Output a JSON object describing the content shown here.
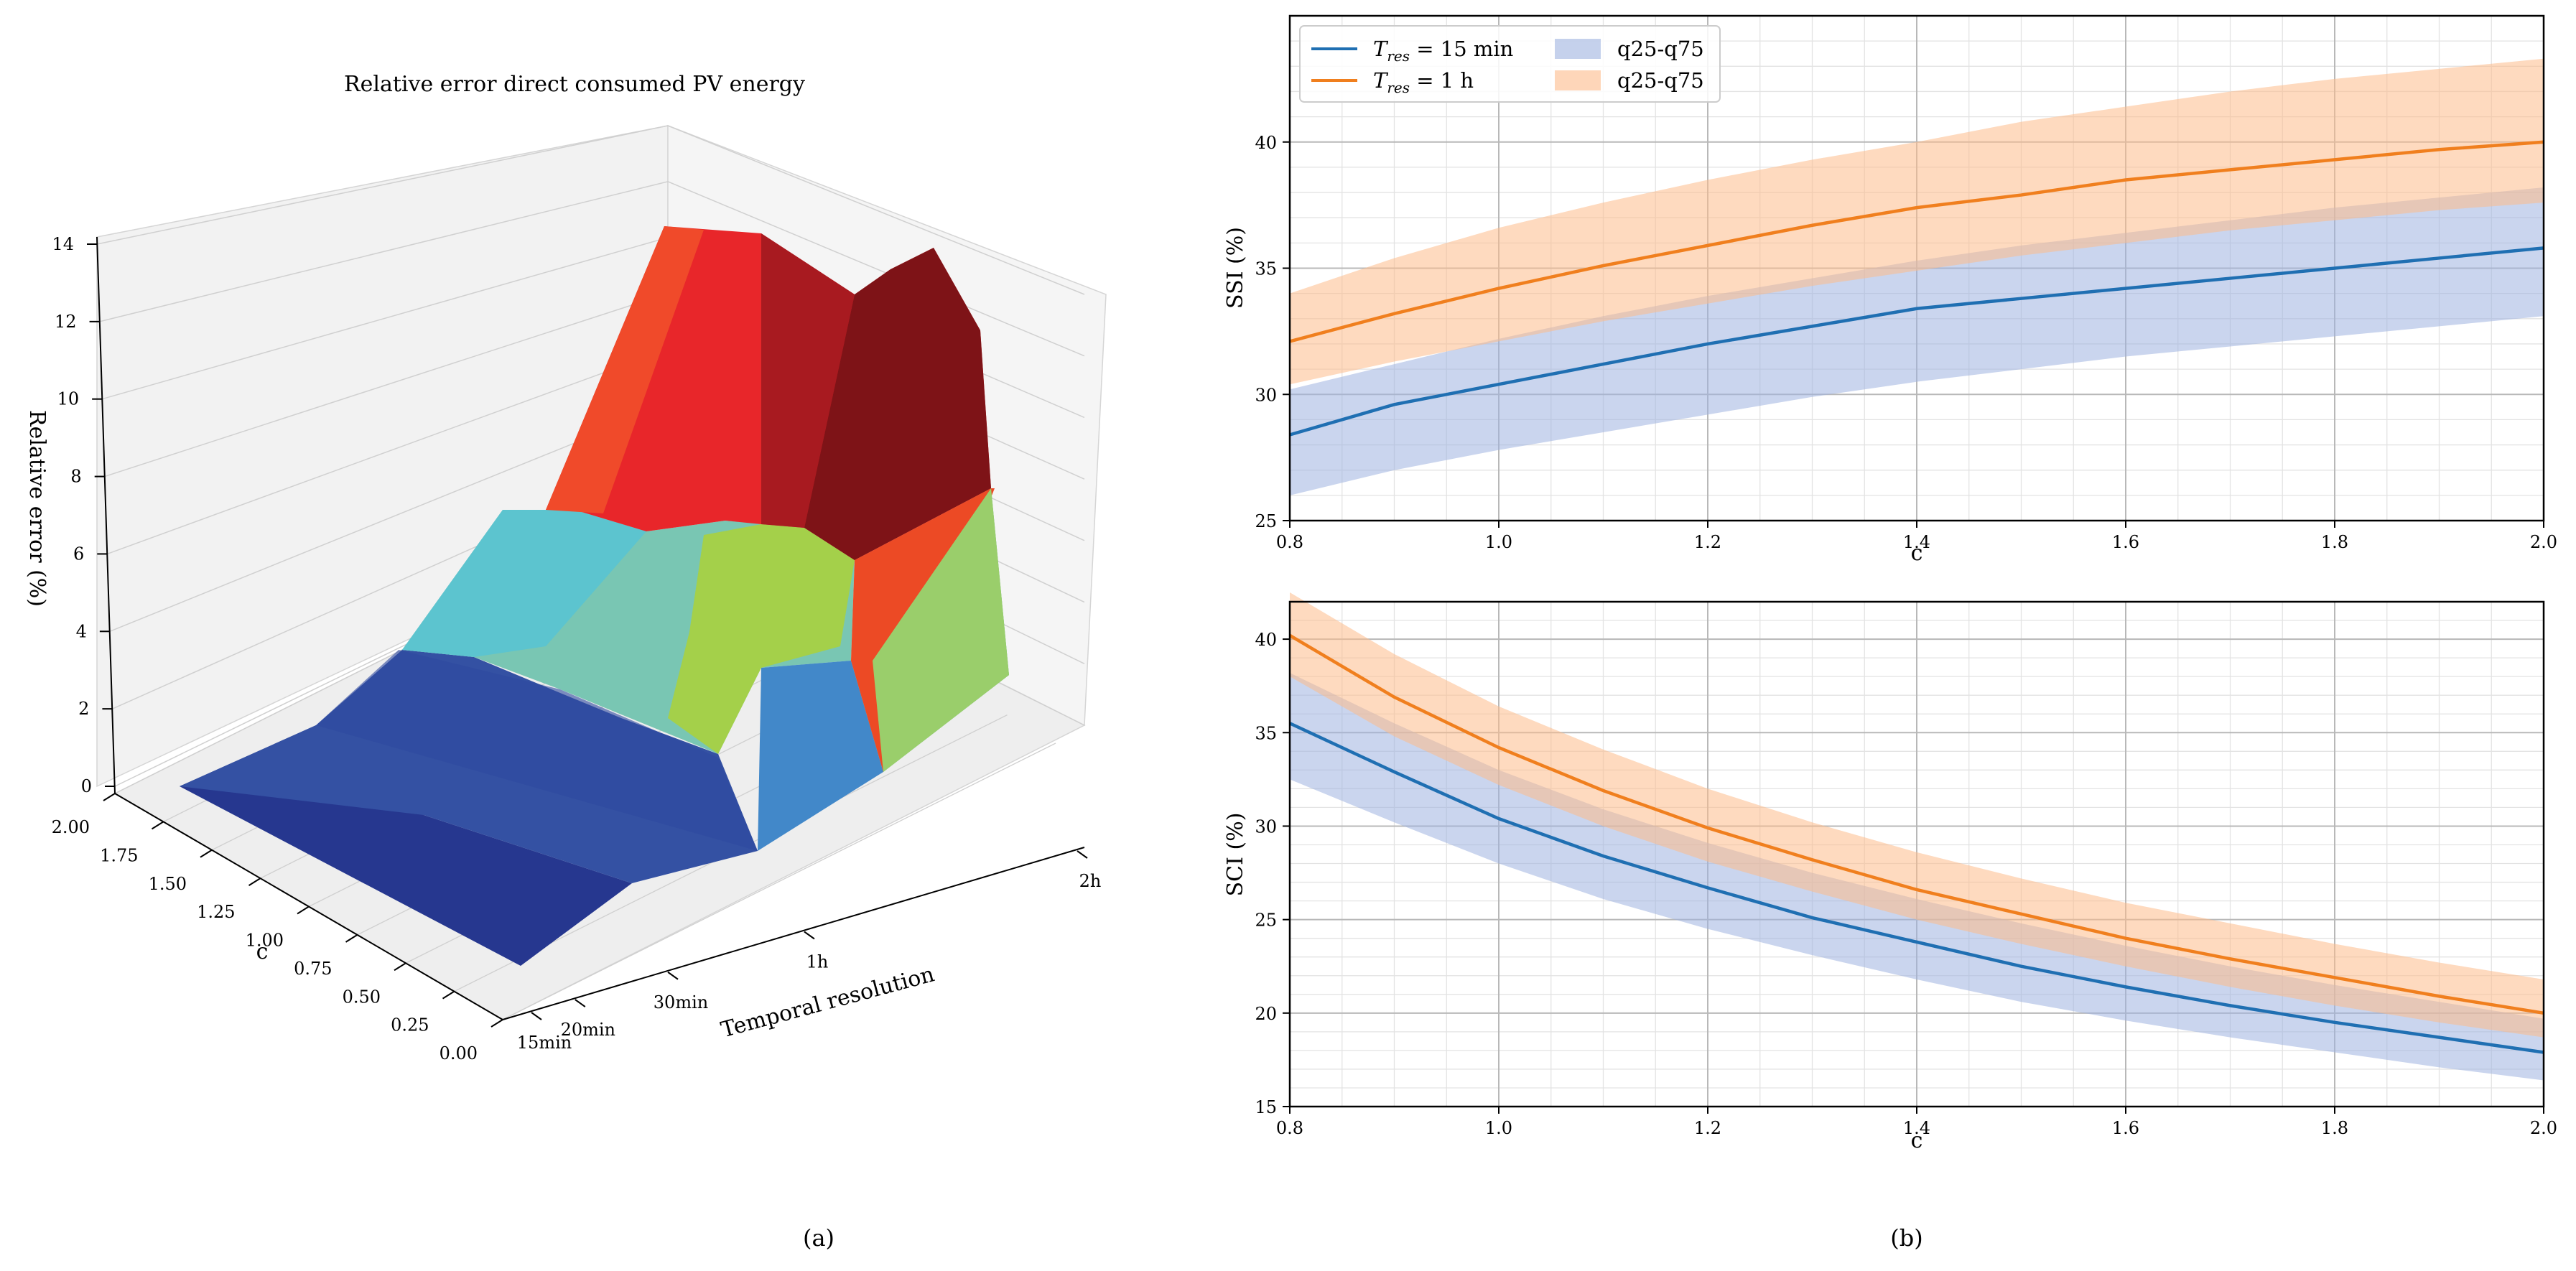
{
  "captions": {
    "a": "(a)",
    "b": "(b)"
  },
  "colors": {
    "blue": "#1f6fb2",
    "orange": "#f07f1e",
    "blue_band": "#9fb2e0",
    "orange_band": "#fdbb8a",
    "grid": "#bdbdbd"
  },
  "chart_data": [
    {
      "type": "surface",
      "title": "Relative error direct consumed PV energy",
      "xlabel": "Temporal resolution",
      "ylabel": "c",
      "zlabel": "Relative error (%)",
      "x_ticks": [
        "15min",
        "20min",
        "30min",
        "1h",
        "2h"
      ],
      "y_ticks": [
        "0.00",
        "0.25",
        "0.50",
        "0.75",
        "1.00",
        "1.25",
        "1.50",
        "1.75",
        "2.00"
      ],
      "z_ticks": [
        "0",
        "2",
        "4",
        "6",
        "8",
        "10",
        "12",
        "14"
      ],
      "zlim": [
        0,
        14
      ],
      "surface_z_at_c_max": [
        0.3,
        2.5,
        5.5,
        9.5,
        13.5
      ],
      "surface_z_at_c_min": [
        0.0,
        0.9,
        2.0,
        4.5,
        8.0
      ]
    },
    {
      "type": "line",
      "xlabel": "c",
      "ylabel": "SSI (%)",
      "xlim": [
        0.8,
        2.0
      ],
      "ylim": [
        25,
        45
      ],
      "x_ticks": [
        "0.8",
        "1.0",
        "1.2",
        "1.4",
        "1.6",
        "1.8",
        "2.0"
      ],
      "y_ticks": [
        "25",
        "30",
        "35",
        "40"
      ],
      "x": [
        0.8,
        0.9,
        1.0,
        1.1,
        1.2,
        1.3,
        1.4,
        1.5,
        1.6,
        1.7,
        1.8,
        1.9,
        2.0
      ],
      "series": [
        {
          "name": "T_res = 15 min",
          "label_math": "T",
          "label_sub": "res",
          "label_rest": " = 15 min",
          "values": [
            28.4,
            29.6,
            30.4,
            31.2,
            32.0,
            32.7,
            33.4,
            33.8,
            34.2,
            34.6,
            35.0,
            35.4,
            35.8
          ],
          "q25": [
            26.0,
            27.0,
            27.8,
            28.5,
            29.2,
            29.9,
            30.5,
            31.0,
            31.5,
            31.9,
            32.3,
            32.7,
            33.1
          ],
          "q75": [
            30.2,
            31.2,
            32.2,
            33.1,
            33.9,
            34.6,
            35.3,
            35.9,
            36.4,
            36.9,
            37.4,
            37.8,
            38.2
          ]
        },
        {
          "name": "T_res = 1 h",
          "label_math": "T",
          "label_sub": "res",
          "label_rest": " = 1 h",
          "values": [
            32.1,
            33.2,
            34.2,
            35.1,
            35.9,
            36.7,
            37.4,
            37.9,
            38.5,
            38.9,
            39.3,
            39.7,
            40.0
          ],
          "q25": [
            30.4,
            31.3,
            32.1,
            32.9,
            33.6,
            34.3,
            34.9,
            35.5,
            36.0,
            36.5,
            36.9,
            37.3,
            37.6
          ],
          "q75": [
            34.0,
            35.4,
            36.6,
            37.6,
            38.5,
            39.3,
            40.0,
            40.8,
            41.4,
            42.0,
            42.5,
            42.9,
            43.3
          ]
        }
      ],
      "legend": {
        "band_labels": [
          "q25-q75",
          "q25-q75"
        ],
        "placement": "top-left"
      }
    },
    {
      "type": "line",
      "xlabel": "c",
      "ylabel": "SCI (%)",
      "xlim": [
        0.8,
        2.0
      ],
      "ylim": [
        15,
        42
      ],
      "x_ticks": [
        "0.8",
        "1.0",
        "1.2",
        "1.4",
        "1.6",
        "1.8",
        "2.0"
      ],
      "y_ticks": [
        "15",
        "20",
        "25",
        "30",
        "35",
        "40"
      ],
      "x": [
        0.8,
        0.9,
        1.0,
        1.1,
        1.2,
        1.3,
        1.4,
        1.5,
        1.6,
        1.7,
        1.8,
        1.9,
        2.0
      ],
      "series": [
        {
          "name": "T_res = 15 min",
          "values": [
            35.5,
            32.9,
            30.4,
            28.4,
            26.7,
            25.1,
            23.8,
            22.5,
            21.4,
            20.4,
            19.5,
            18.7,
            17.9
          ],
          "q25": [
            32.5,
            30.2,
            28.0,
            26.1,
            24.5,
            23.1,
            21.8,
            20.6,
            19.6,
            18.7,
            17.9,
            17.1,
            16.4
          ],
          "q75": [
            38.2,
            35.5,
            33.0,
            30.9,
            29.1,
            27.5,
            26.1,
            24.8,
            23.6,
            22.5,
            21.5,
            20.6,
            19.7
          ]
        },
        {
          "name": "T_res = 1 h",
          "values": [
            40.2,
            36.9,
            34.2,
            31.9,
            29.9,
            28.2,
            26.6,
            25.3,
            24.0,
            22.9,
            21.9,
            20.9,
            20.0
          ],
          "q25": [
            38.0,
            34.8,
            32.2,
            30.0,
            28.1,
            26.5,
            25.0,
            23.7,
            22.5,
            21.4,
            20.4,
            19.5,
            18.7
          ],
          "q75": [
            42.5,
            39.2,
            36.4,
            34.1,
            32.0,
            30.2,
            28.6,
            27.2,
            25.9,
            24.8,
            23.7,
            22.7,
            21.8
          ]
        }
      ]
    }
  ]
}
